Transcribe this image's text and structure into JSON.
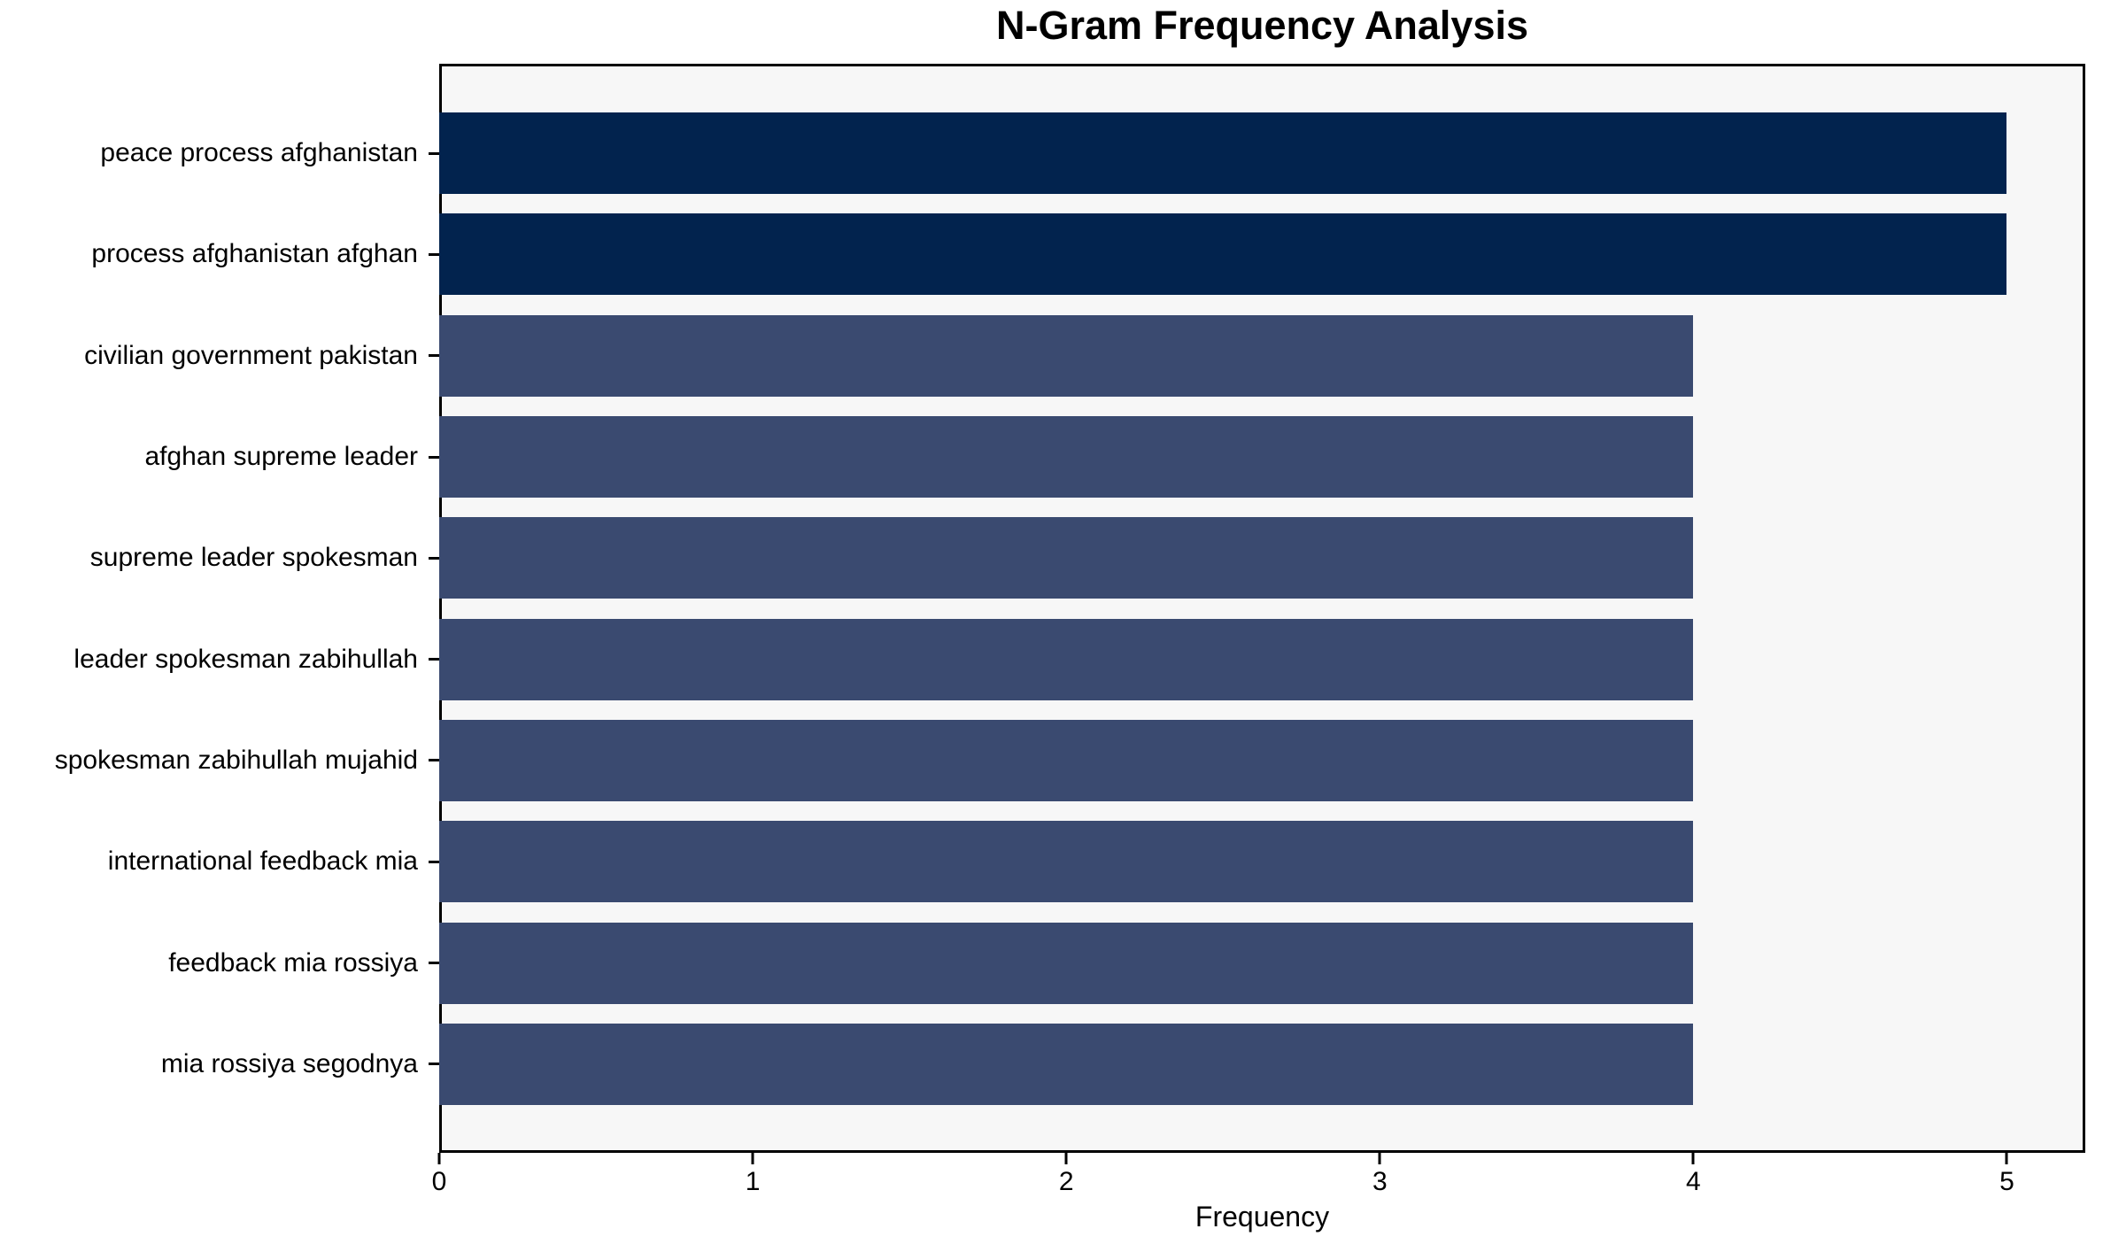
{
  "chart_data": {
    "type": "bar",
    "orientation": "horizontal",
    "title": "N-Gram Frequency Analysis",
    "xlabel": "Frequency",
    "categories": [
      "peace process afghanistan",
      "process afghanistan afghan",
      "civilian government pakistan",
      "afghan supreme leader",
      "supreme leader spokesman",
      "leader spokesman zabihullah",
      "spokesman zabihullah mujahid",
      "international feedback mia",
      "feedback mia rossiya",
      "mia rossiya segodnya"
    ],
    "values": [
      5,
      5,
      4,
      4,
      4,
      4,
      4,
      4,
      4,
      4
    ],
    "bar_colors": [
      "#02234e",
      "#02234e",
      "#3a4a70",
      "#3a4a70",
      "#3a4a70",
      "#3a4a70",
      "#3a4a70",
      "#3a4a70",
      "#3a4a70",
      "#3a4a70"
    ],
    "xlim": [
      0,
      5.25
    ],
    "xticks": [
      "0",
      "1",
      "2",
      "3",
      "4",
      "5"
    ],
    "xtick_values": [
      0,
      1,
      2,
      3,
      4,
      5
    ],
    "grid": false,
    "plot_background": "#f7f7f7",
    "axis_color": "#000000",
    "figure_background": "#ffffff"
  }
}
